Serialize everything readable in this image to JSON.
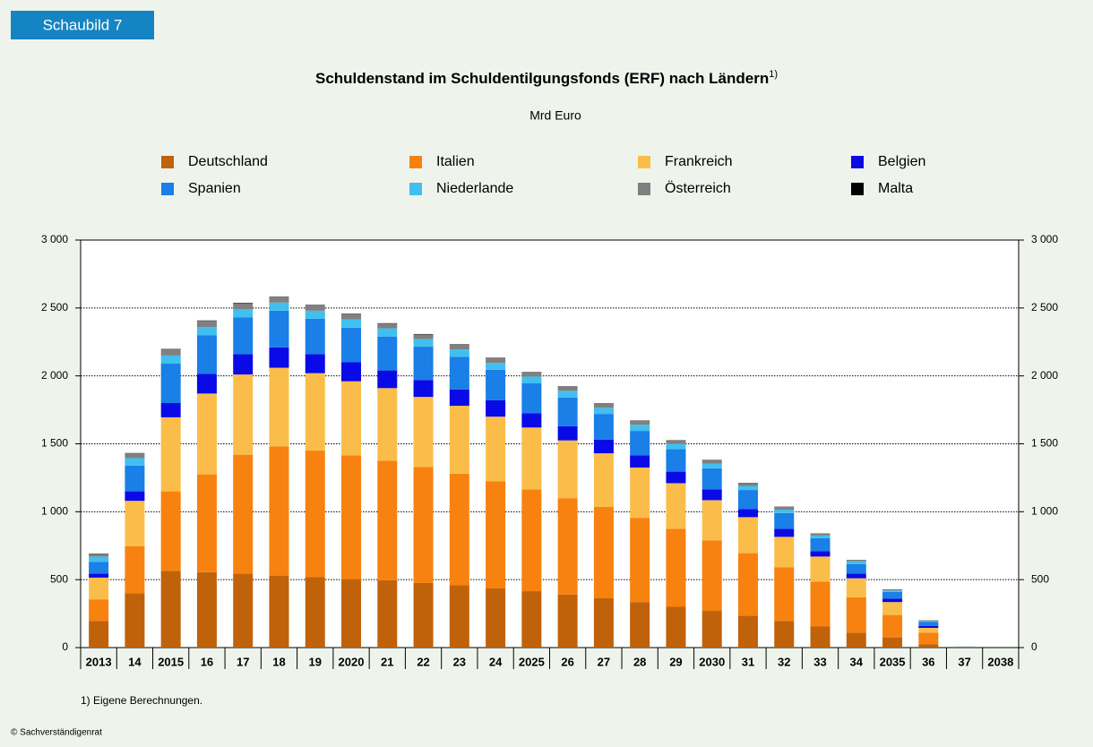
{
  "badge": "Schaubild 7",
  "footnote": "1) Eigene Berechnungen.",
  "copyright": "© Sachverständigenrat",
  "chart_data": {
    "type": "stacked_bar",
    "title": "Schuldenstand im Schuldentilgungsfonds (ERF) nach Ländern",
    "title_note": "1)",
    "subtitle": "Mrd Euro",
    "categories": [
      "2013",
      "14",
      "2015",
      "16",
      "17",
      "18",
      "19",
      "2020",
      "21",
      "22",
      "23",
      "24",
      "2025",
      "26",
      "27",
      "28",
      "29",
      "2030",
      "31",
      "32",
      "33",
      "34",
      "2035",
      "36",
      "37",
      "2038"
    ],
    "series": [
      {
        "name": "Deutschland",
        "color": "#c0620a",
        "values": [
          195,
          400,
          565,
          555,
          545,
          530,
          520,
          505,
          495,
          475,
          460,
          435,
          415,
          390,
          365,
          335,
          300,
          270,
          235,
          195,
          155,
          110,
          75,
          25,
          1,
          0
        ]
      },
      {
        "name": "Italien",
        "color": "#f7820f",
        "values": [
          160,
          345,
          585,
          720,
          875,
          950,
          930,
          910,
          880,
          855,
          820,
          790,
          750,
          710,
          670,
          620,
          575,
          520,
          460,
          395,
          330,
          260,
          165,
          85,
          2,
          0
        ]
      },
      {
        "name": "Frankreich",
        "color": "#fbbd4a",
        "values": [
          160,
          335,
          545,
          595,
          590,
          580,
          570,
          545,
          535,
          515,
          500,
          475,
          455,
          425,
          395,
          370,
          335,
          295,
          265,
          225,
          185,
          140,
          95,
          35,
          1,
          0
        ]
      },
      {
        "name": "Belgien",
        "color": "#0a0ae6",
        "values": [
          30,
          70,
          105,
          145,
          150,
          150,
          140,
          140,
          130,
          125,
          120,
          120,
          105,
          105,
          100,
          90,
          85,
          80,
          60,
          60,
          40,
          35,
          25,
          15,
          1,
          0
        ]
      },
      {
        "name": "Spanien",
        "color": "#1a7fe6",
        "values": [
          85,
          190,
          290,
          285,
          270,
          270,
          260,
          255,
          250,
          245,
          240,
          225,
          220,
          210,
          190,
          180,
          165,
          155,
          140,
          115,
          95,
          70,
          50,
          30,
          2,
          0
        ]
      },
      {
        "name": "Niederlande",
        "color": "#40bff0",
        "values": [
          40,
          55,
          60,
          60,
          60,
          60,
          60,
          60,
          60,
          55,
          55,
          50,
          50,
          50,
          45,
          45,
          40,
          35,
          30,
          25,
          20,
          20,
          10,
          5,
          1,
          0
        ]
      },
      {
        "name": "Österreich",
        "color": "#808080",
        "values": [
          20,
          35,
          45,
          45,
          45,
          40,
          40,
          40,
          35,
          35,
          35,
          35,
          30,
          30,
          30,
          30,
          25,
          25,
          20,
          20,
          15,
          10,
          8,
          5,
          0,
          0
        ]
      },
      {
        "name": "Malta",
        "color": "#000000",
        "values": [
          2,
          2,
          3,
          3,
          3,
          3,
          3,
          3,
          3,
          3,
          3,
          3,
          3,
          3,
          3,
          2,
          2,
          2,
          2,
          2,
          1,
          1,
          1,
          1,
          0,
          0
        ]
      }
    ],
    "ylim": [
      0,
      3000
    ],
    "yticks": [
      0,
      500,
      {
        "value": 1000,
        "label": "1 000"
      },
      {
        "value": 1500,
        "label": "1 500"
      },
      {
        "value": 2000,
        "label": "2 000"
      },
      {
        "value": 2500,
        "label": "2 500"
      },
      {
        "value": 3000,
        "label": "3 000"
      }
    ],
    "grid": true
  }
}
